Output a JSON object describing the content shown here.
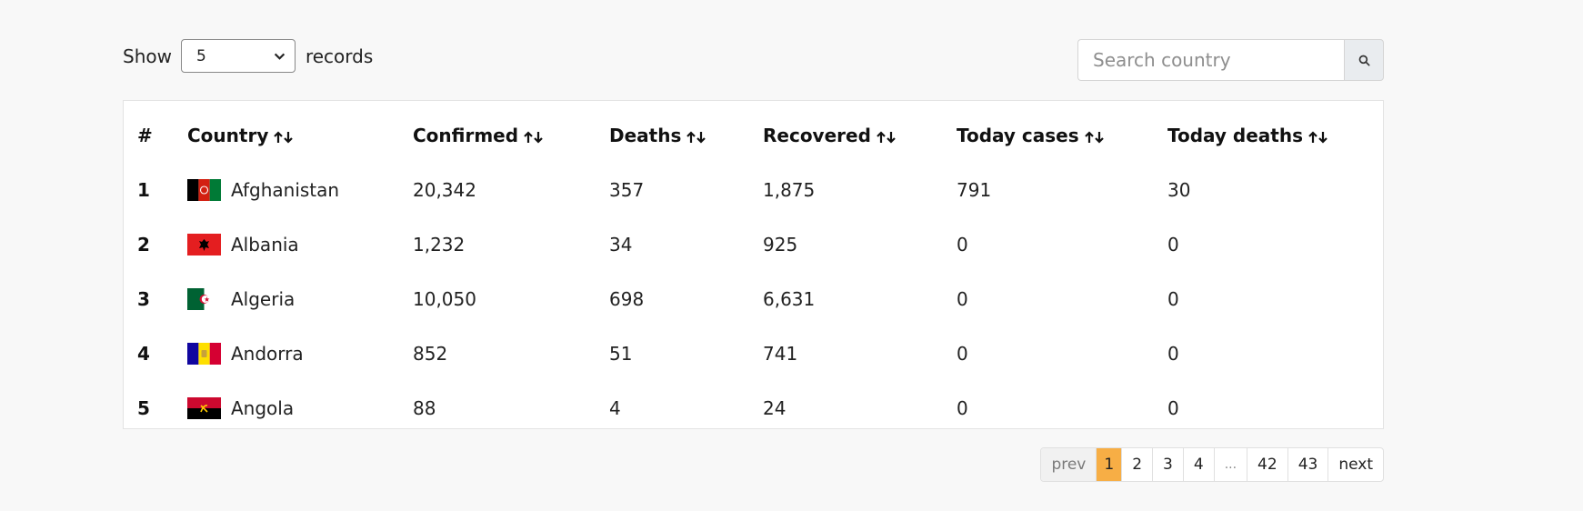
{
  "controls": {
    "show_label": "Show",
    "page_size": "5",
    "records_label": "records",
    "search_placeholder": "Search country"
  },
  "table": {
    "headers": [
      "#",
      "Country",
      "Confirmed",
      "Deaths",
      "Recovered",
      "Today cases",
      "Today deaths"
    ],
    "rows": [
      {
        "index": "1",
        "country": "Afghanistan",
        "flag": "afghanistan-flag",
        "confirmed": "20,342",
        "deaths": "357",
        "recovered": "1,875",
        "today_cases": "791",
        "today_deaths": "30"
      },
      {
        "index": "2",
        "country": "Albania",
        "flag": "albania-flag",
        "confirmed": "1,232",
        "deaths": "34",
        "recovered": "925",
        "today_cases": "0",
        "today_deaths": "0"
      },
      {
        "index": "3",
        "country": "Algeria",
        "flag": "algeria-flag",
        "confirmed": "10,050",
        "deaths": "698",
        "recovered": "6,631",
        "today_cases": "0",
        "today_deaths": "0"
      },
      {
        "index": "4",
        "country": "Andorra",
        "flag": "andorra-flag",
        "confirmed": "852",
        "deaths": "51",
        "recovered": "741",
        "today_cases": "0",
        "today_deaths": "0"
      },
      {
        "index": "5",
        "country": "Angola",
        "flag": "angola-flag",
        "confirmed": "88",
        "deaths": "4",
        "recovered": "24",
        "today_cases": "0",
        "today_deaths": "0"
      }
    ]
  },
  "pagination": {
    "items": [
      "prev",
      "1",
      "2",
      "3",
      "4",
      "...",
      "42",
      "43",
      "next"
    ],
    "active": "1"
  },
  "colors": {
    "background": "#f8f8f8",
    "active_page": "#f7ae45",
    "search_button": "#e9ecef"
  },
  "icons": {
    "search": "search-icon",
    "sort": "sort-arrows-icon",
    "select": "chevron-down-icon"
  }
}
